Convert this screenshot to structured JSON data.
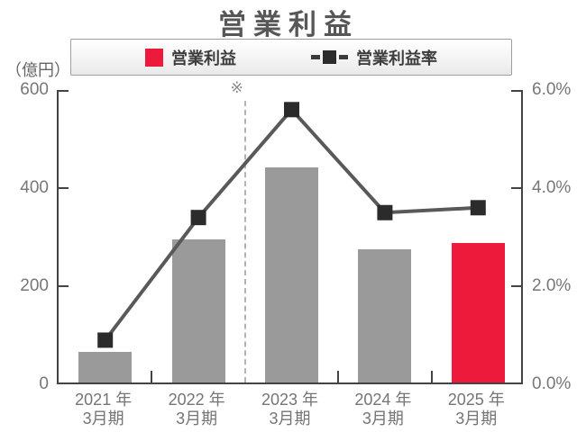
{
  "title": "営業利益",
  "unit_label": "（億円）",
  "annotation_mark": "※",
  "legend": {
    "profit_label": "営業利益",
    "margin_label": "営業利益率"
  },
  "colors": {
    "bar_gray": "#9a9a9a",
    "bar_red": "#ed1a3c",
    "line": "#595959",
    "marker": "#2b2b2b",
    "axis": "#444444",
    "tick_text": "#777777",
    "divider": "#b3b3b3"
  },
  "chart_data": {
    "type": "combo",
    "title": "営業利益",
    "legend_position": "top",
    "grid": false,
    "categories": [
      {
        "line1": "2021 年",
        "line2": "3月期"
      },
      {
        "line1": "2022 年",
        "line2": "3月期"
      },
      {
        "line1": "2023 年",
        "line2": "3月期"
      },
      {
        "line1": "2024 年",
        "line2": "3月期"
      },
      {
        "line1": "2025 年",
        "line2": "3月期"
      }
    ],
    "series": [
      {
        "name": "営業利益",
        "type": "bar",
        "axis": "left",
        "unit": "億円",
        "values": [
          62,
          292,
          438,
          272,
          284
        ],
        "bar_colors": [
          "#9a9a9a",
          "#9a9a9a",
          "#9a9a9a",
          "#9a9a9a",
          "#ed1a3c"
        ]
      },
      {
        "name": "営業利益率",
        "type": "line",
        "axis": "right",
        "unit": "%",
        "values": [
          0.9,
          3.4,
          5.6,
          3.5,
          3.6
        ]
      }
    ],
    "left_axis": {
      "title": "（億円）",
      "min": 0,
      "max": 600,
      "ticks": [
        0,
        200,
        400,
        600
      ]
    },
    "right_axis": {
      "min": 0,
      "max": 6,
      "ticks": [
        0,
        2,
        4,
        6
      ],
      "tick_labels": [
        "0.0%",
        "2.0%",
        "4.0%",
        "6.0%"
      ]
    },
    "divider": {
      "boundary_index": 2,
      "annotation": "※",
      "style": "dashed"
    }
  }
}
